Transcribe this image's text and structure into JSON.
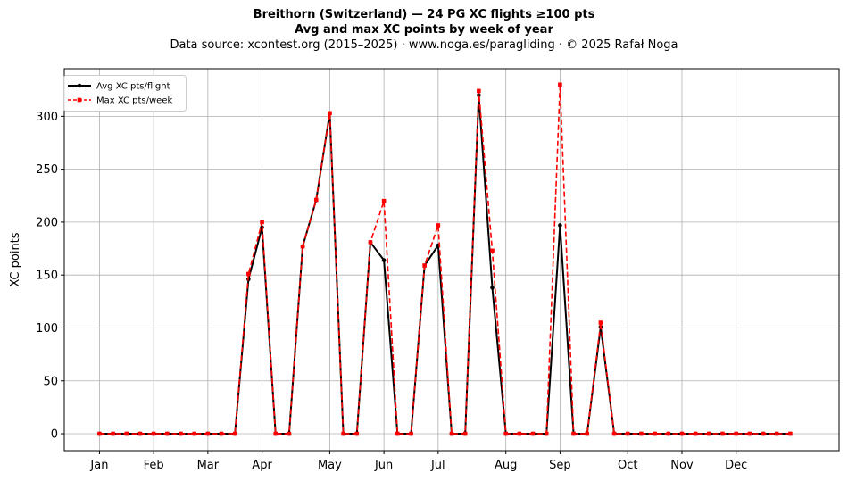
{
  "chart_data": {
    "type": "line",
    "title": "Breithorn (Switzerland)  —  24 PG XC flights ≥100 pts",
    "subtitle": "Avg and max XC points by week of year",
    "source_note": "Data source: xcontest.org (2015–2025)  ·  www.noga.es/paragliding  ·  © 2025 Rafał Noga",
    "xlabel": "",
    "ylabel": "XC points",
    "ylim": [
      -16,
      345
    ],
    "xlim": [
      -2.6,
      54.6
    ],
    "yticks": [
      0,
      50,
      100,
      150,
      200,
      250,
      300
    ],
    "xticks": [
      {
        "label": "Jan",
        "week": 0
      },
      {
        "label": "Feb",
        "week": 4
      },
      {
        "label": "Mar",
        "week": 8
      },
      {
        "label": "Apr",
        "week": 12
      },
      {
        "label": "May",
        "week": 17
      },
      {
        "label": "Jun",
        "week": 21
      },
      {
        "label": "Jul",
        "week": 25
      },
      {
        "label": "Aug",
        "week": 30
      },
      {
        "label": "Sep",
        "week": 34
      },
      {
        "label": "Oct",
        "week": 39
      },
      {
        "label": "Nov",
        "week": 43
      },
      {
        "label": "Dec",
        "week": 47
      }
    ],
    "grid": true,
    "legend_position": "top-left",
    "x": [
      0,
      1,
      2,
      3,
      4,
      5,
      6,
      7,
      8,
      9,
      10,
      11,
      12,
      13,
      14,
      15,
      16,
      17,
      18,
      19,
      20,
      21,
      22,
      23,
      24,
      25,
      26,
      27,
      28,
      29,
      30,
      31,
      32,
      33,
      34,
      35,
      36,
      37,
      38,
      39,
      40,
      41,
      42,
      43,
      44,
      45,
      46,
      47,
      48,
      49,
      50,
      51
    ],
    "series": [
      {
        "name": "Avg XC pts/flight",
        "color": "#000000",
        "style": "solid",
        "marker": "circle",
        "values": [
          0,
          0,
          0,
          0,
          0,
          0,
          0,
          0,
          0,
          0,
          0,
          146,
          195,
          0,
          0,
          177,
          221,
          303,
          0,
          0,
          181,
          164,
          0,
          0,
          159,
          178,
          0,
          0,
          320,
          138,
          0,
          0,
          0,
          0,
          197,
          0,
          0,
          101,
          0,
          0,
          0,
          0,
          0,
          0,
          0,
          0,
          0,
          0,
          0,
          0,
          0,
          0
        ]
      },
      {
        "name": "Max XC pts/week",
        "color": "#ff0000",
        "style": "dashed",
        "marker": "square",
        "values": [
          0,
          0,
          0,
          0,
          0,
          0,
          0,
          0,
          0,
          0,
          0,
          151,
          200,
          0,
          0,
          177,
          221,
          303,
          0,
          0,
          181,
          220,
          0,
          0,
          159,
          197,
          0,
          0,
          324,
          173,
          0,
          0,
          0,
          0,
          330,
          0,
          0,
          105,
          0,
          0,
          0,
          0,
          0,
          0,
          0,
          0,
          0,
          0,
          0,
          0,
          0,
          0
        ]
      }
    ]
  }
}
